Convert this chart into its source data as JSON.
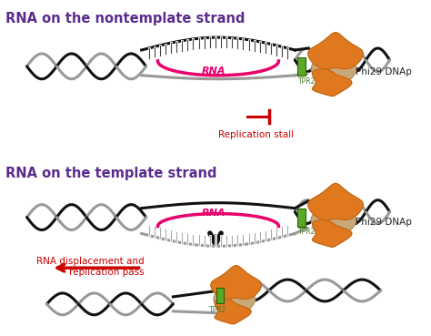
{
  "title1": "RNA on the nontemplate strand",
  "title2": "RNA on the template strand",
  "title_color": "#5B2C8D",
  "title_fontsize": 10.5,
  "rna_label": "RNA",
  "rna_color": "#E8006B",
  "tpr2_label": "TPR2",
  "tpr2_color": "#4a7c2f",
  "phi29_label": "Phi29 DNAp",
  "replication_stall_label": "Replication stall",
  "rna_displacement_label": "RNA displacement and\nreplication pass",
  "red_color": "#cc0000",
  "bg_color": "#ffffff",
  "dna_black": "#111111",
  "dna_gray": "#999999",
  "orange_color": "#e07820",
  "tan_color": "#c8a878",
  "green_color": "#5aaa2a",
  "arrow_color": "#111111"
}
